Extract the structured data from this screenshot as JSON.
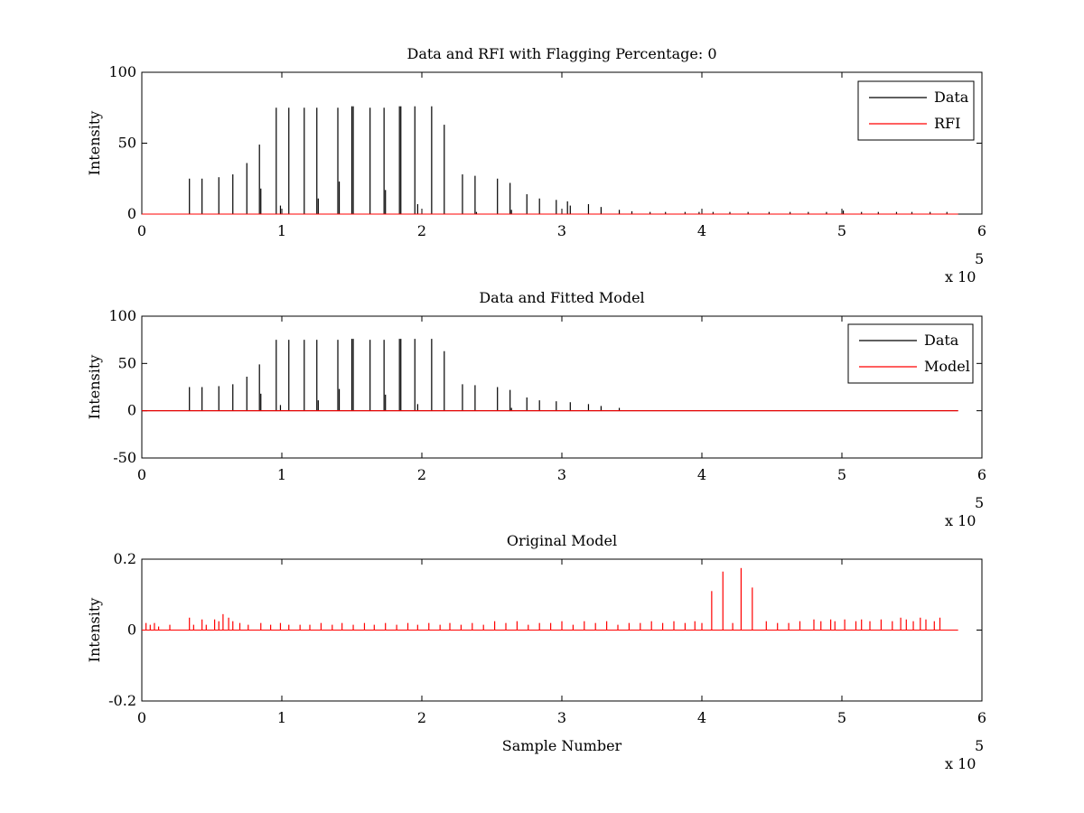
{
  "chart_data": [
    {
      "type": "line",
      "title": "Data and RFI with Flagging Percentage: 0",
      "xlabel": "",
      "ylabel": "Intensity",
      "xlim": [
        0,
        6
      ],
      "ylim": [
        0,
        100
      ],
      "xticks": [
        0,
        1,
        2,
        3,
        4,
        5,
        6
      ],
      "yticks": [
        0,
        50,
        100
      ],
      "xtick_labels": [
        "0",
        "1",
        "2",
        "3",
        "4",
        "5",
        "6"
      ],
      "ytick_labels": [
        "0",
        "50",
        "100"
      ],
      "x_multiplier": "x 10",
      "x_multiplier_exp": "5",
      "x_end": 5.83,
      "legend": {
        "position": "top-right",
        "entries": [
          {
            "name": "Data",
            "color": "#000000"
          },
          {
            "name": "RFI",
            "color": "#ff0000"
          }
        ]
      },
      "series": [
        {
          "name": "Data",
          "color": "#000000",
          "spikes": {
            "x": [
              0.34,
              0.43,
              0.55,
              0.65,
              0.75,
              0.84,
              0.85,
              0.96,
              0.99,
              1.05,
              1.16,
              1.25,
              1.26,
              1.4,
              1.41,
              1.5,
              1.51,
              1.63,
              1.73,
              1.74,
              1.84,
              1.85,
              1.95,
              1.97,
              2.07,
              2.16,
              2.29,
              2.38,
              2.39,
              2.54,
              2.63,
              2.64,
              2.75,
              2.84,
              2.96,
              3.04,
              3.06,
              3.19,
              3.28,
              3.41,
              3.5,
              3.63,
              3.74,
              3.88,
              3.98,
              4.08,
              4.2,
              4.33,
              4.48,
              4.63,
              4.76,
              4.89,
              5.01,
              5.14,
              5.26,
              5.39,
              5.5,
              5.63,
              5.75
            ],
            "y": [
              25,
              25,
              26,
              28,
              36,
              49,
              18,
              75,
              6,
              75,
              75,
              75,
              11,
              75,
              23,
              76,
              76,
              75,
              75,
              17,
              76,
              76,
              76,
              7,
              76,
              63,
              28,
              27,
              1.5,
              25,
              22,
              3,
              14,
              11,
              10,
              9,
              6,
              7,
              5,
              3,
              2,
              1.5,
              1.5,
              1.5,
              1.5,
              1.5,
              1.5,
              1.5,
              1.5,
              1.5,
              1.5,
              1.5,
              2.5,
              1.5,
              1.5,
              1.5,
              1.5,
              1.5,
              1.5
            ]
          }
        },
        {
          "name": "RFI",
          "color": "#ff0000",
          "spikes": {
            "x": [],
            "y": []
          }
        }
      ]
    },
    {
      "type": "line",
      "title": "Data and Fitted Model",
      "xlabel": "",
      "ylabel": "Intensity",
      "xlim": [
        0,
        6
      ],
      "ylim": [
        -50,
        100
      ],
      "xticks": [
        0,
        1,
        2,
        3,
        4,
        5,
        6
      ],
      "yticks": [
        -50,
        0,
        50,
        100
      ],
      "xtick_labels": [
        "0",
        "1",
        "2",
        "3",
        "4",
        "5",
        "6"
      ],
      "ytick_labels": [
        "-50",
        "0",
        "50",
        "100"
      ],
      "x_multiplier": "x 10",
      "x_multiplier_exp": "5",
      "x_end": 5.83,
      "legend": {
        "position": "top-right",
        "entries": [
          {
            "name": "Data",
            "color": "#000000"
          },
          {
            "name": "Model",
            "color": "#ff0000"
          }
        ]
      },
      "series": [
        {
          "name": "Data",
          "color": "#000000",
          "spikes": {
            "x": [
              0.34,
              0.43,
              0.55,
              0.65,
              0.75,
              0.84,
              0.85,
              0.96,
              0.99,
              1.05,
              1.16,
              1.25,
              1.26,
              1.4,
              1.41,
              1.5,
              1.51,
              1.63,
              1.73,
              1.74,
              1.84,
              1.85,
              1.95,
              1.97,
              2.07,
              2.16,
              2.29,
              2.38,
              2.54,
              2.63,
              2.64,
              2.75,
              2.84,
              2.96,
              3.06,
              3.19,
              3.28,
              3.41
            ],
            "y": [
              25,
              25,
              26,
              28,
              36,
              49,
              18,
              75,
              6,
              75,
              75,
              75,
              11,
              75,
              23,
              76,
              76,
              75,
              75,
              17,
              76,
              76,
              76,
              7,
              76,
              63,
              28,
              27,
              25,
              22,
              3,
              14,
              11,
              10,
              9,
              7,
              5,
              3
            ]
          }
        },
        {
          "name": "Model",
          "color": "#ff0000",
          "line": {
            "x": [
              0,
              5.83
            ],
            "y": [
              0,
              0
            ]
          }
        }
      ]
    },
    {
      "type": "line",
      "title": "Original Model",
      "xlabel": "Sample Number",
      "ylabel": "Intensity",
      "xlim": [
        0,
        6
      ],
      "ylim": [
        -0.2,
        0.2
      ],
      "xticks": [
        0,
        1,
        2,
        3,
        4,
        5,
        6
      ],
      "yticks": [
        -0.2,
        0,
        0.2
      ],
      "xtick_labels": [
        "0",
        "1",
        "2",
        "3",
        "4",
        "5",
        "6"
      ],
      "ytick_labels": [
        "-0.2",
        "0",
        "0.2"
      ],
      "x_multiplier": "x 10",
      "x_multiplier_exp": "5",
      "x_end": 5.83,
      "series": [
        {
          "name": "Original Model",
          "color": "#ff0000",
          "spikes": {
            "x": [
              0.03,
              0.06,
              0.09,
              0.12,
              0.2,
              0.34,
              0.37,
              0.43,
              0.46,
              0.52,
              0.55,
              0.58,
              0.62,
              0.65,
              0.7,
              0.76,
              0.85,
              0.92,
              0.99,
              1.05,
              1.13,
              1.2,
              1.28,
              1.36,
              1.43,
              1.51,
              1.59,
              1.66,
              1.74,
              1.82,
              1.9,
              1.97,
              2.05,
              2.13,
              2.2,
              2.28,
              2.36,
              2.44,
              2.52,
              2.6,
              2.68,
              2.76,
              2.84,
              2.92,
              3.0,
              3.08,
              3.16,
              3.24,
              3.32,
              3.4,
              3.48,
              3.56,
              3.64,
              3.72,
              3.8,
              3.88,
              3.95,
              4.0,
              4.07,
              4.15,
              4.22,
              4.28,
              4.36,
              4.46,
              4.54,
              4.62,
              4.7,
              4.8,
              4.85,
              4.92,
              4.95,
              5.02,
              5.1,
              5.14,
              5.2,
              5.28,
              5.36,
              5.42,
              5.46,
              5.51,
              5.56,
              5.6,
              5.66,
              5.7
            ],
            "y": [
              0.02,
              0.015,
              0.02,
              0.01,
              0.015,
              0.035,
              0.015,
              0.03,
              0.015,
              0.03,
              0.025,
              0.045,
              0.035,
              0.025,
              0.02,
              0.015,
              0.02,
              0.015,
              0.02,
              0.015,
              0.015,
              0.015,
              0.02,
              0.015,
              0.02,
              0.015,
              0.02,
              0.015,
              0.02,
              0.015,
              0.02,
              0.015,
              0.02,
              0.015,
              0.02,
              0.015,
              0.02,
              0.015,
              0.025,
              0.02,
              0.025,
              0.015,
              0.02,
              0.02,
              0.025,
              0.015,
              0.025,
              0.02,
              0.025,
              0.015,
              0.02,
              0.02,
              0.025,
              0.02,
              0.025,
              0.02,
              0.025,
              0.02,
              0.11,
              0.165,
              0.02,
              0.175,
              0.12,
              0.025,
              0.02,
              0.02,
              0.025,
              0.03,
              0.025,
              0.03,
              0.025,
              0.03,
              0.025,
              0.03,
              0.025,
              0.03,
              0.025,
              0.035,
              0.03,
              0.025,
              0.035,
              0.03,
              0.025,
              0.035
            ]
          }
        }
      ]
    }
  ]
}
